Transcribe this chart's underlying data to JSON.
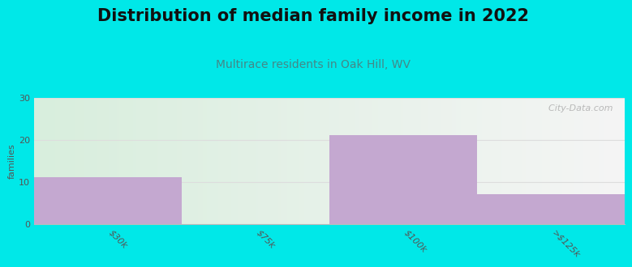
{
  "title": "Distribution of median family income in 2022",
  "subtitle": "Multirace residents in Oak Hill, WV",
  "categories": [
    "$30k",
    "$75k",
    "$100k",
    ">$125k"
  ],
  "values": [
    11,
    0,
    21,
    7
  ],
  "bar_color": "#c4a8d0",
  "background_color": "#00e8e8",
  "plot_bg_left": "#d8eedd",
  "plot_bg_right": "#f5f5f5",
  "ylabel": "families",
  "ylim": [
    0,
    30
  ],
  "yticks": [
    0,
    10,
    20,
    30
  ],
  "title_fontsize": 15,
  "subtitle_fontsize": 10,
  "subtitle_color": "#448888",
  "watermark": "  City-Data.com",
  "grid_color": "#dddddd",
  "tick_label_color": "#555555",
  "spine_color": "#bbbbbb"
}
